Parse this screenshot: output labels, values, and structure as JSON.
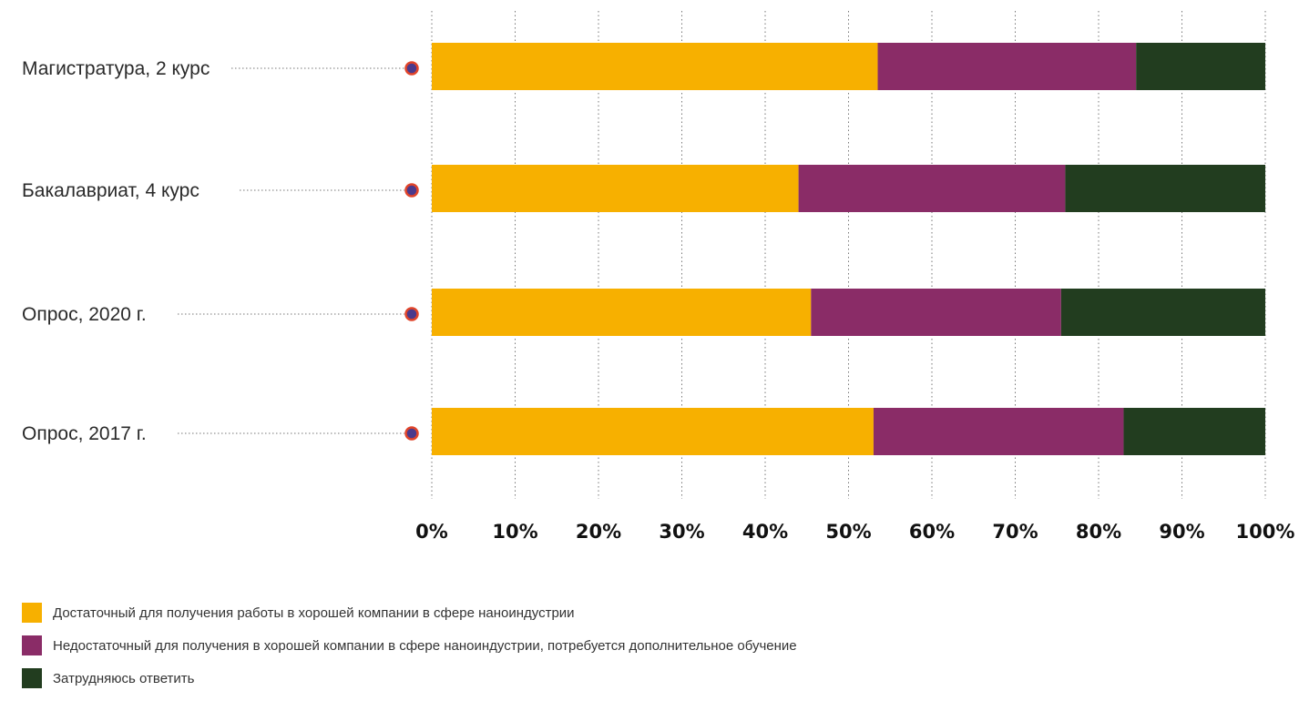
{
  "chart_data": {
    "type": "bar",
    "orientation": "horizontal",
    "stacked": true,
    "categories": [
      "Магистратура, 2 курс",
      "Бакалавриат, 4 курс",
      "Опрос, 2020 г.",
      "Опрос, 2017 г."
    ],
    "series": [
      {
        "name": "Достаточный для получения работы в хорошей компании в сфере наноиндустрии",
        "color": "#F7B000",
        "values": [
          53.5,
          44,
          45.5,
          53
        ]
      },
      {
        "name": "Недостаточный для получения в хорошей компании в сфере наноиндустрии, потребуется дополнительное обучение",
        "color": "#8A2C67",
        "values": [
          31,
          32,
          30,
          30
        ]
      },
      {
        "name": "Затрудняюсь ответить",
        "color": "#223D1F",
        "values": [
          15.5,
          24,
          24.5,
          17
        ]
      }
    ],
    "xlim": [
      0,
      100
    ],
    "ticks": [
      "0%",
      "10%",
      "20%",
      "30%",
      "40%",
      "50%",
      "60%",
      "70%",
      "80%",
      "90%",
      "100%"
    ],
    "grid": true,
    "legend_position": "bottom-left",
    "marker_color": "#4B3A8C",
    "marker_border": "#E0442A"
  }
}
